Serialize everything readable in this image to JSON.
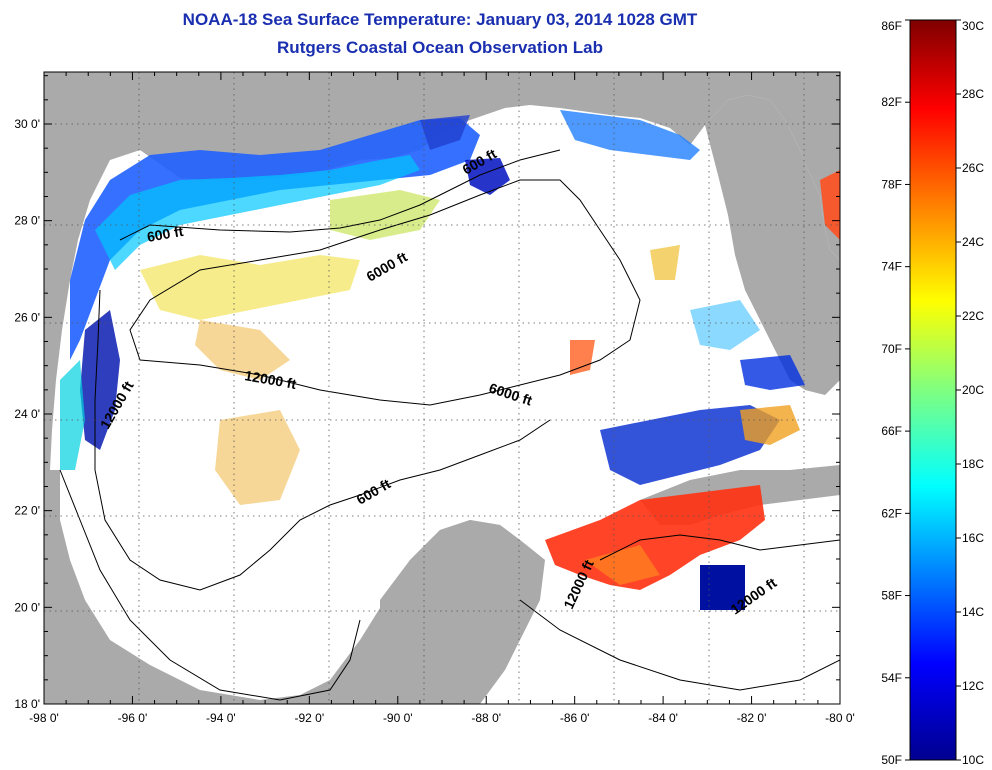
{
  "title": "NOAA-18 Sea Surface Temperature:  January 03, 2014 1028 GMT",
  "subtitle": "Rutgers Coastal Ocean Observation Lab",
  "map": {
    "lon_ticks": [
      "-98 0'",
      "-96 0'",
      "-94 0'",
      "-92 0'",
      "-90 0'",
      "-88 0'",
      "-86 0'",
      "-84 0'",
      "-82 0'",
      "-80 0'"
    ],
    "lat_ticks": [
      "30 0'",
      "28 0'",
      "26 0'",
      "24 0'",
      "22 0'",
      "20 0'",
      "18 0'"
    ],
    "contour_labels": [
      "600 ft",
      "600 ft",
      "600 ft",
      "6000 ft",
      "6000 ft",
      "12000 ft",
      "12000 ft",
      "12000 ft",
      "12000 ft"
    ],
    "land_color": "#aaaaaa",
    "water_color": "#ffffff"
  },
  "colorbar": {
    "f_labels": [
      "86F",
      "82F",
      "78F",
      "74F",
      "70F",
      "66F",
      "62F",
      "58F",
      "54F",
      "50F"
    ],
    "c_labels": [
      "30C",
      "28C",
      "26C",
      "24C",
      "22C",
      "20C",
      "18C",
      "16C",
      "14C",
      "12C",
      "10C"
    ],
    "colors": [
      "#7f0000",
      "#ff0000",
      "#ff8000",
      "#ffff00",
      "#80ff80",
      "#00ffff",
      "#0080ff",
      "#0000ff",
      "#00008f"
    ]
  }
}
